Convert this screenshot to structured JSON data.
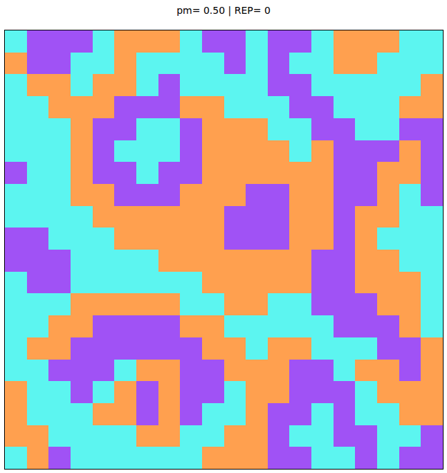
{
  "chart_data": {
    "type": "heatmap",
    "title": "pm= 0.50 | REP= 0",
    "tick_labels": false,
    "zlim": [
      0,
      2
    ],
    "colors": [
      "#a052f5",
      "#5cf5f0",
      "#ffa04f"
    ],
    "cells": [
      [
        1,
        0,
        0,
        0,
        1,
        2,
        2,
        2,
        1,
        0,
        0,
        1,
        0,
        0,
        1,
        2,
        2,
        2,
        1,
        1
      ],
      [
        2,
        0,
        0,
        1,
        1,
        2,
        1,
        1,
        1,
        1,
        0,
        1,
        0,
        1,
        1,
        2,
        2,
        1,
        1,
        1
      ],
      [
        1,
        2,
        2,
        1,
        2,
        2,
        1,
        0,
        1,
        1,
        1,
        1,
        0,
        0,
        1,
        1,
        1,
        1,
        1,
        2
      ],
      [
        1,
        1,
        2,
        2,
        2,
        0,
        0,
        0,
        2,
        2,
        1,
        1,
        1,
        0,
        0,
        1,
        1,
        1,
        2,
        2
      ],
      [
        1,
        1,
        1,
        2,
        0,
        0,
        1,
        1,
        0,
        2,
        2,
        2,
        1,
        1,
        0,
        0,
        1,
        1,
        0,
        0
      ],
      [
        1,
        1,
        1,
        2,
        0,
        1,
        1,
        1,
        0,
        2,
        2,
        2,
        2,
        1,
        2,
        0,
        0,
        0,
        2,
        0
      ],
      [
        0,
        1,
        1,
        2,
        0,
        0,
        1,
        0,
        0,
        2,
        2,
        2,
        2,
        2,
        2,
        0,
        0,
        2,
        2,
        0
      ],
      [
        1,
        1,
        1,
        2,
        2,
        0,
        0,
        0,
        2,
        2,
        2,
        0,
        0,
        2,
        2,
        0,
        0,
        2,
        1,
        0
      ],
      [
        1,
        1,
        1,
        1,
        2,
        2,
        2,
        2,
        2,
        2,
        0,
        0,
        0,
        2,
        2,
        0,
        2,
        2,
        1,
        1
      ],
      [
        0,
        0,
        1,
        1,
        1,
        2,
        2,
        2,
        2,
        2,
        0,
        0,
        0,
        2,
        2,
        0,
        2,
        1,
        1,
        1
      ],
      [
        0,
        0,
        0,
        1,
        1,
        1,
        1,
        2,
        2,
        2,
        2,
        2,
        2,
        2,
        0,
        0,
        2,
        2,
        1,
        1
      ],
      [
        1,
        0,
        0,
        1,
        1,
        1,
        1,
        1,
        1,
        2,
        2,
        2,
        2,
        2,
        0,
        0,
        2,
        2,
        2,
        1
      ],
      [
        1,
        1,
        1,
        2,
        2,
        2,
        2,
        2,
        1,
        1,
        2,
        2,
        1,
        1,
        0,
        0,
        0,
        2,
        2,
        1
      ],
      [
        1,
        1,
        2,
        2,
        0,
        0,
        0,
        0,
        2,
        2,
        1,
        1,
        1,
        1,
        1,
        0,
        0,
        0,
        2,
        1
      ],
      [
        1,
        2,
        2,
        0,
        0,
        0,
        0,
        0,
        0,
        2,
        2,
        1,
        2,
        2,
        1,
        1,
        1,
        0,
        0,
        2
      ],
      [
        1,
        1,
        0,
        0,
        0,
        1,
        2,
        2,
        0,
        0,
        2,
        2,
        2,
        0,
        0,
        1,
        2,
        2,
        0,
        2
      ],
      [
        2,
        1,
        1,
        0,
        1,
        2,
        0,
        2,
        0,
        0,
        1,
        2,
        2,
        0,
        0,
        0,
        1,
        2,
        2,
        2
      ],
      [
        2,
        1,
        1,
        1,
        2,
        2,
        0,
        2,
        0,
        1,
        1,
        2,
        0,
        0,
        1,
        0,
        1,
        1,
        2,
        2
      ],
      [
        2,
        2,
        1,
        1,
        1,
        1,
        2,
        2,
        1,
        1,
        2,
        2,
        0,
        1,
        1,
        0,
        0,
        1,
        1,
        0
      ],
      [
        1,
        2,
        0,
        1,
        1,
        1,
        1,
        1,
        1,
        2,
        2,
        2,
        0,
        0,
        1,
        1,
        0,
        1,
        0,
        0
      ]
    ]
  }
}
